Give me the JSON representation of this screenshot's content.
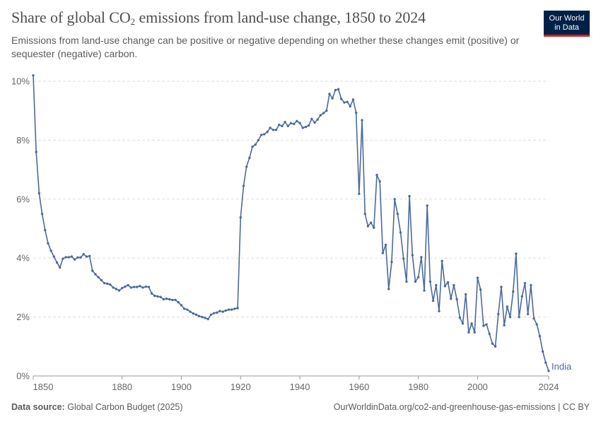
{
  "header": {
    "title_main": "Share of global CO",
    "title_sub": "2",
    "title_rest": " emissions from land-use change, 1850 to 2024",
    "subtitle": "Emissions from land-use change can be positive or negative depending on whether these changes emit (positive) or sequester (negative) carbon.",
    "logo_line1": "Our World",
    "logo_line2": "in Data"
  },
  "footer": {
    "source_label": "Data source:",
    "source_value": "Global Carbon Budget (2025)",
    "url": "OurWorldinData.org/co2-and-greenhouse-gas-emissions | CC BY"
  },
  "colors": {
    "series": "#4c6a9c",
    "grid": "#dddddd",
    "axis": "#999999",
    "logo_bg": "#002147",
    "logo_accent": "#ce261e"
  },
  "chart_data": {
    "type": "line",
    "title": "Share of global CO2 emissions from land-use change, 1850 to 2024",
    "xlabel": "",
    "ylabel": "",
    "xlim": [
      1850,
      2024
    ],
    "ylim": [
      0,
      10
    ],
    "x_ticks": [
      1850,
      1880,
      1900,
      1920,
      1940,
      1960,
      1980,
      2000,
      2024
    ],
    "y_ticks": [
      {
        "value": 0,
        "label": "0%"
      },
      {
        "value": 2,
        "label": "2%"
      },
      {
        "value": 4,
        "label": "4%"
      },
      {
        "value": 6,
        "label": "6%"
      },
      {
        "value": 8,
        "label": "8%"
      },
      {
        "value": 10,
        "label": "10%"
      }
    ],
    "grid": "horizontal-dashed",
    "series": [
      {
        "name": "India",
        "x": [
          1850,
          1851,
          1852,
          1853,
          1854,
          1855,
          1856,
          1857,
          1858,
          1859,
          1860,
          1861,
          1862,
          1863,
          1864,
          1865,
          1866,
          1867,
          1868,
          1869,
          1870,
          1871,
          1872,
          1873,
          1874,
          1875,
          1876,
          1877,
          1878,
          1879,
          1880,
          1881,
          1882,
          1883,
          1884,
          1885,
          1886,
          1887,
          1888,
          1889,
          1890,
          1891,
          1892,
          1893,
          1894,
          1895,
          1896,
          1897,
          1898,
          1899,
          1900,
          1901,
          1902,
          1903,
          1904,
          1905,
          1906,
          1907,
          1908,
          1909,
          1910,
          1911,
          1912,
          1913,
          1914,
          1915,
          1916,
          1917,
          1918,
          1919,
          1920,
          1921,
          1922,
          1923,
          1924,
          1925,
          1926,
          1927,
          1928,
          1929,
          1930,
          1931,
          1932,
          1933,
          1934,
          1935,
          1936,
          1937,
          1938,
          1939,
          1940,
          1941,
          1942,
          1943,
          1944,
          1945,
          1946,
          1947,
          1948,
          1949,
          1950,
          1951,
          1952,
          1953,
          1954,
          1955,
          1956,
          1957,
          1958,
          1959,
          1960,
          1961,
          1962,
          1963,
          1964,
          1965,
          1966,
          1967,
          1968,
          1969,
          1970,
          1971,
          1972,
          1973,
          1974,
          1975,
          1976,
          1977,
          1978,
          1979,
          1980,
          1981,
          1982,
          1983,
          1984,
          1985,
          1986,
          1987,
          1988,
          1989,
          1990,
          1991,
          1992,
          1993,
          1994,
          1995,
          1996,
          1997,
          1998,
          1999,
          2000,
          2001,
          2002,
          2003,
          2004,
          2005,
          2006,
          2007,
          2008,
          2009,
          2010,
          2011,
          2012,
          2013,
          2014,
          2015,
          2016,
          2017,
          2018,
          2019,
          2020,
          2021,
          2022,
          2023,
          2024
        ],
        "y": [
          10.2,
          7.6,
          6.2,
          5.5,
          4.95,
          4.5,
          4.25,
          4.05,
          3.85,
          3.68,
          3.98,
          4.03,
          4.03,
          4.05,
          3.95,
          4.02,
          4.02,
          4.13,
          4.05,
          4.07,
          3.57,
          3.45,
          3.35,
          3.25,
          3.15,
          3.13,
          3.1,
          3.0,
          2.95,
          2.9,
          2.98,
          3.03,
          3.08,
          3.0,
          3.02,
          3.02,
          3.05,
          3.0,
          3.03,
          3.02,
          2.8,
          2.72,
          2.7,
          2.68,
          2.6,
          2.62,
          2.6,
          2.58,
          2.58,
          2.5,
          2.4,
          2.28,
          2.25,
          2.18,
          2.12,
          2.08,
          2.03,
          2.0,
          1.97,
          1.93,
          2.08,
          2.13,
          2.15,
          2.2,
          2.18,
          2.22,
          2.25,
          2.25,
          2.28,
          2.3,
          5.38,
          6.45,
          7.1,
          7.4,
          7.78,
          7.85,
          8.0,
          8.18,
          8.2,
          8.28,
          8.42,
          8.35,
          8.35,
          8.52,
          8.48,
          8.62,
          8.48,
          8.58,
          8.55,
          8.65,
          8.58,
          8.42,
          8.45,
          8.5,
          8.72,
          8.6,
          8.7,
          8.85,
          8.92,
          9.0,
          9.57,
          9.42,
          9.7,
          9.73,
          9.4,
          9.28,
          9.3,
          9.15,
          9.38,
          8.93,
          6.18,
          8.68,
          5.5,
          5.08,
          5.2,
          5.03,
          6.82,
          6.6,
          4.17,
          4.45,
          2.95,
          3.87,
          6.0,
          5.5,
          4.87,
          3.98,
          3.2,
          6.1,
          4.1,
          3.2,
          3.35,
          4.03,
          2.9,
          5.78,
          3.2,
          2.55,
          3.08,
          2.2,
          3.9,
          3.05,
          3.18,
          2.62,
          3.08,
          2.6,
          1.98,
          1.78,
          2.77,
          1.48,
          1.78,
          1.48,
          3.33,
          2.93,
          1.7,
          1.75,
          1.43,
          1.1,
          1.0,
          2.1,
          3.02,
          1.72,
          2.35,
          2.0,
          2.86,
          4.15,
          2.0,
          2.7,
          3.15,
          2.1,
          3.08,
          1.95,
          1.75,
          1.35,
          0.83,
          0.45,
          0.17
        ]
      }
    ]
  }
}
